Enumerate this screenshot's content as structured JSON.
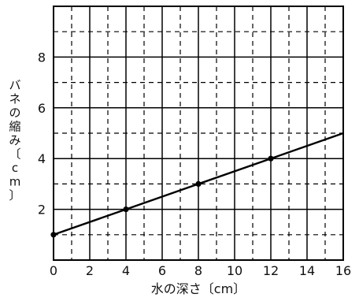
{
  "chart_data": {
    "type": "line",
    "title": "",
    "xlabel": "水の深さ〔cm〕",
    "ylabel": "バネの縮み〔cm〕",
    "xlim": [
      0,
      16
    ],
    "ylim": [
      0,
      10
    ],
    "x_ticks": [
      0,
      2,
      4,
      6,
      8,
      10,
      12,
      14,
      16
    ],
    "y_ticks": [
      2,
      4,
      6,
      8
    ],
    "x_tick_labels": [
      "0",
      "2",
      "4",
      "6",
      "8",
      "10",
      "12",
      "14",
      "16"
    ],
    "y_tick_labels": [
      "2",
      "4",
      "6",
      "8"
    ],
    "grid": {
      "major": true,
      "minor_dashed": true,
      "major_step_x": 2,
      "major_step_y": 2,
      "minor_step_x": 1,
      "minor_step_y": 1
    },
    "series": [
      {
        "x": [
          0,
          4,
          8,
          12,
          16
        ],
        "y": [
          1,
          2,
          3,
          4,
          5
        ],
        "marked_points": [
          {
            "x": 0,
            "y": 1
          },
          {
            "x": 4,
            "y": 2
          },
          {
            "x": 8,
            "y": 3
          },
          {
            "x": 12,
            "y": 4
          }
        ],
        "color": "#000000"
      }
    ]
  }
}
